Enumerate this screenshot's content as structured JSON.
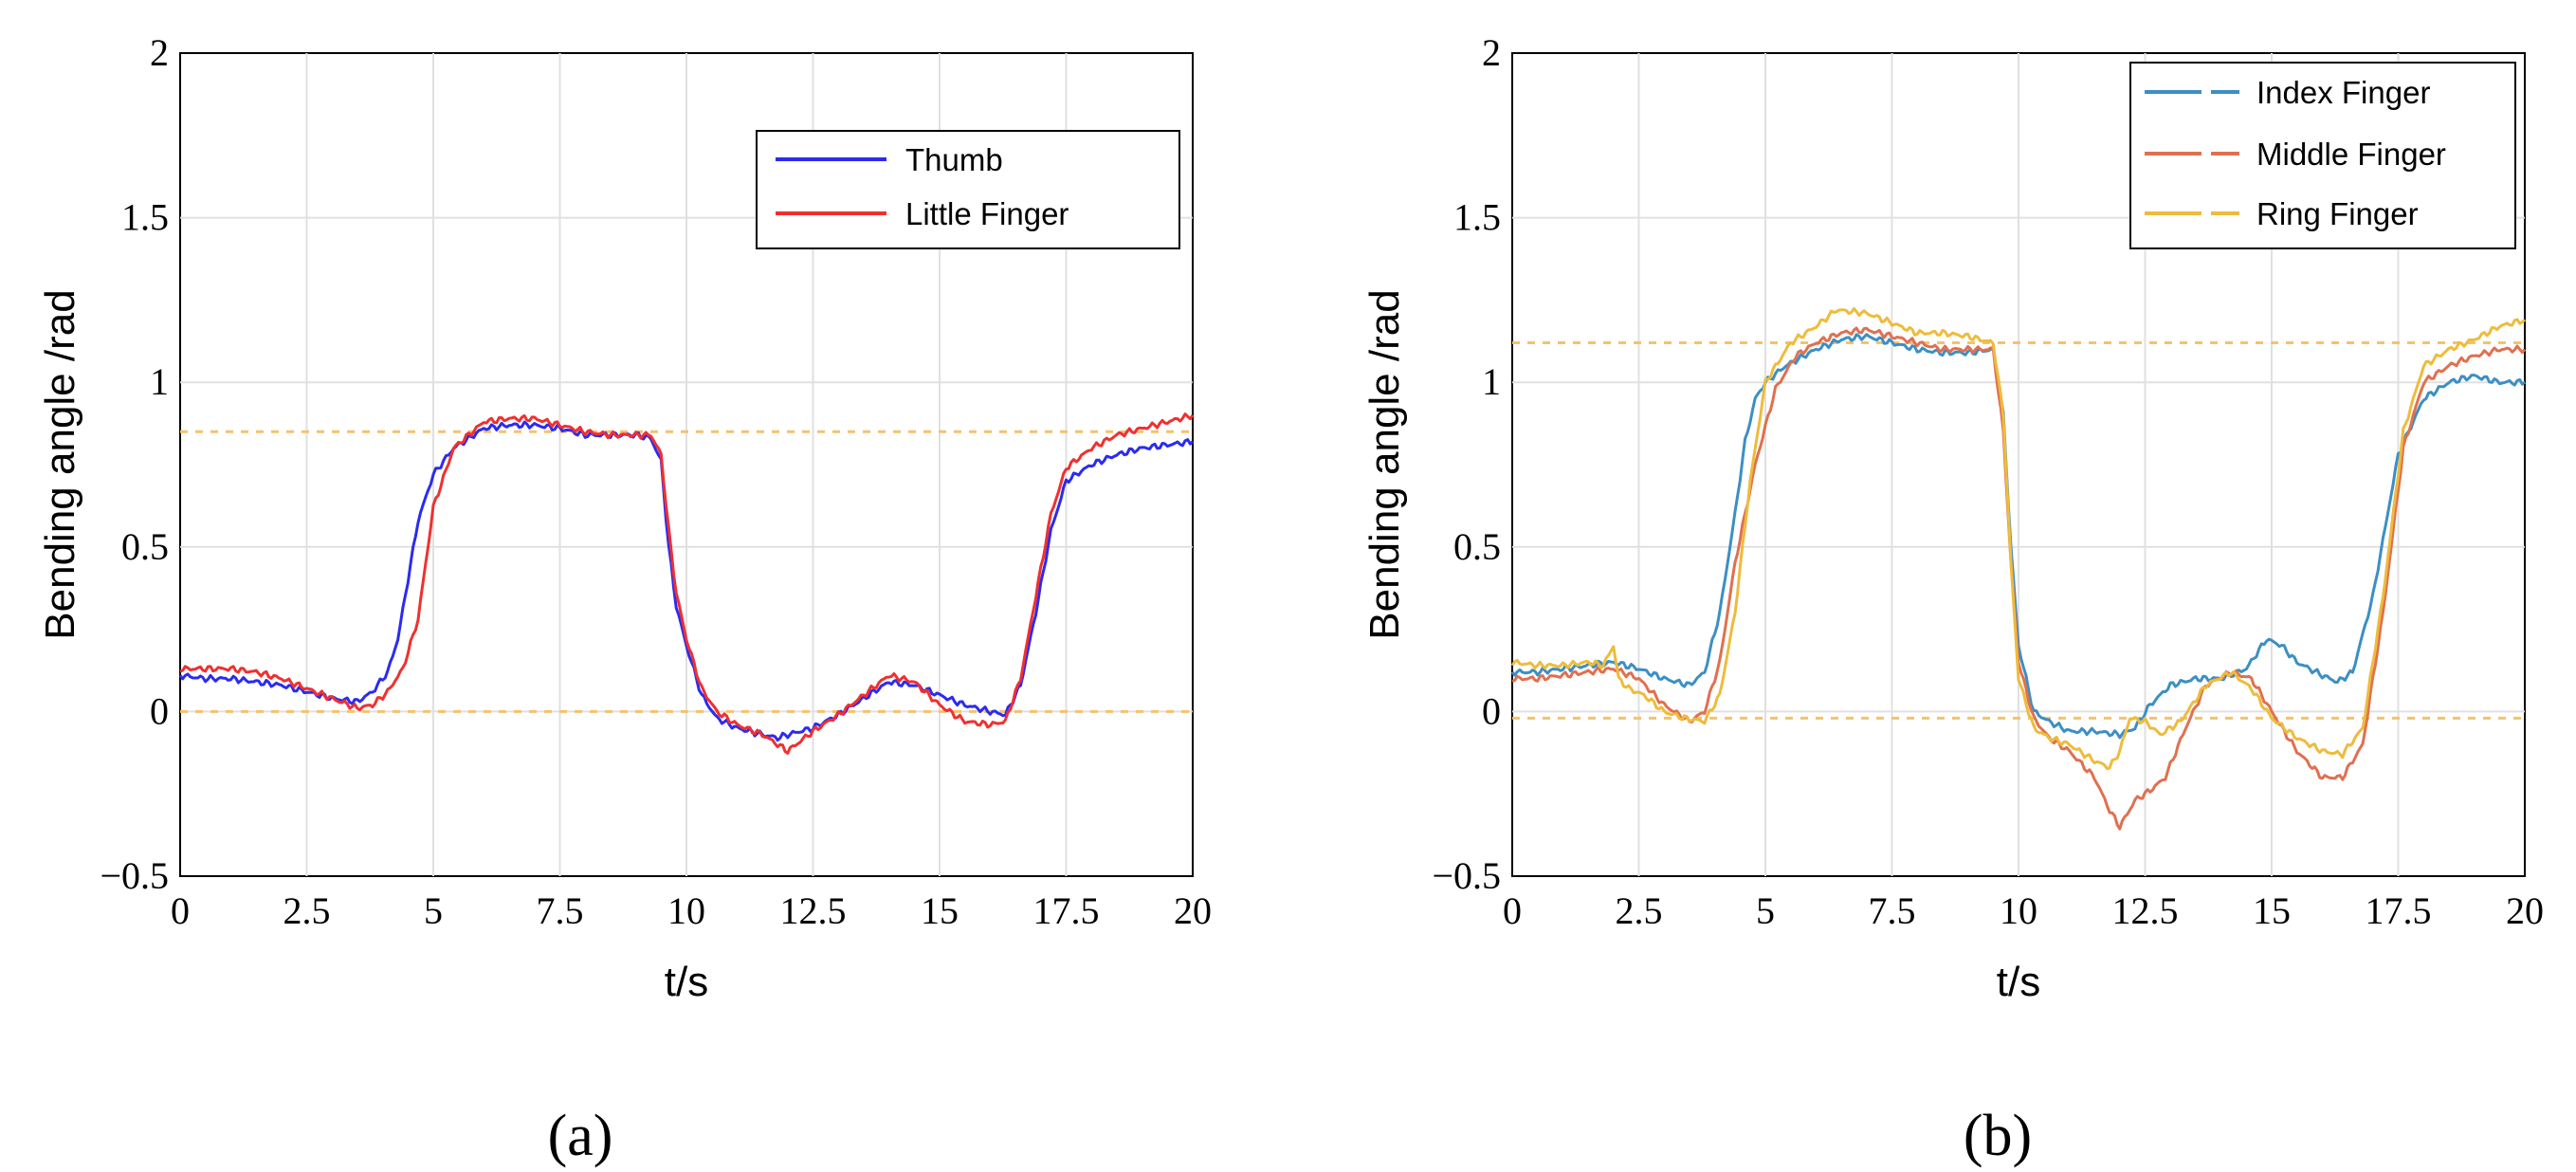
{
  "chart_data": [
    {
      "type": "line",
      "panel_label": "(a)",
      "xlabel": "t/s",
      "ylabel": "Bending angle /rad",
      "xlim": [
        0,
        20
      ],
      "ylim": [
        -0.5,
        2
      ],
      "xticks": [
        0,
        2.5,
        5,
        7.5,
        10,
        12.5,
        15,
        17.5,
        20
      ],
      "xtick_labels": [
        "0",
        "2.5",
        "5",
        "7.5",
        "10",
        "12.5",
        "15",
        "17.5",
        "20"
      ],
      "yticks": [
        -0.5,
        0,
        0.5,
        1,
        1.5,
        2
      ],
      "ytick_labels": [
        "−0.5",
        "0",
        "0.5",
        "1",
        "1.5",
        "2"
      ],
      "grid": true,
      "legend_position": "top-right",
      "reference_lines": [
        0.85,
        0
      ],
      "reference_color": "#f5c26b",
      "series": [
        {
          "name": "Thumb",
          "color": "#2b2bf0",
          "x": [
            0,
            0.5,
            1,
            1.5,
            2,
            2.5,
            3,
            3.5,
            3.8,
            4.1,
            4.3,
            4.5,
            4.7,
            5,
            5.4,
            6,
            6.5,
            7,
            7.5,
            8,
            8.5,
            9,
            9.3,
            9.5,
            9.65,
            9.8,
            10,
            10.3,
            10.6,
            11,
            11.5,
            11.8,
            12,
            12.5,
            13,
            13.5,
            14,
            14.5,
            15,
            15.5,
            16,
            16.3,
            16.6,
            16.9,
            17.2,
            17.5,
            18,
            18.5,
            19,
            19.5,
            20
          ],
          "values": [
            0.11,
            0.1,
            0.1,
            0.09,
            0.08,
            0.06,
            0.04,
            0.03,
            0.06,
            0.12,
            0.22,
            0.4,
            0.58,
            0.72,
            0.8,
            0.86,
            0.87,
            0.87,
            0.86,
            0.84,
            0.84,
            0.84,
            0.83,
            0.76,
            0.5,
            0.32,
            0.2,
            0.05,
            -0.02,
            -0.05,
            -0.07,
            -0.08,
            -0.07,
            -0.05,
            -0.01,
            0.04,
            0.09,
            0.08,
            0.05,
            0.02,
            0.0,
            -0.01,
            0.08,
            0.3,
            0.55,
            0.7,
            0.75,
            0.78,
            0.8,
            0.81,
            0.82
          ]
        },
        {
          "name": "Little Finger",
          "color": "#f03030",
          "x": [
            0,
            0.5,
            1,
            1.5,
            2,
            2.5,
            3,
            3.5,
            3.8,
            4.1,
            4.4,
            4.7,
            5,
            5.4,
            6,
            6.5,
            7,
            7.5,
            8,
            8.5,
            9,
            9.3,
            9.5,
            9.65,
            9.8,
            10,
            10.3,
            10.6,
            11,
            11.5,
            11.8,
            12,
            12.5,
            13,
            13.5,
            14,
            14.5,
            15,
            15.5,
            16,
            16.3,
            16.6,
            16.9,
            17.2,
            17.5,
            18,
            18.5,
            19,
            19.5,
            20
          ],
          "values": [
            0.13,
            0.13,
            0.13,
            0.12,
            0.1,
            0.07,
            0.04,
            0.01,
            0.02,
            0.06,
            0.13,
            0.28,
            0.62,
            0.8,
            0.88,
            0.89,
            0.89,
            0.87,
            0.85,
            0.84,
            0.84,
            0.84,
            0.78,
            0.55,
            0.36,
            0.22,
            0.07,
            0.0,
            -0.04,
            -0.07,
            -0.1,
            -0.12,
            -0.06,
            -0.01,
            0.05,
            0.11,
            0.09,
            0.02,
            -0.03,
            -0.04,
            -0.03,
            0.1,
            0.35,
            0.6,
            0.74,
            0.8,
            0.84,
            0.86,
            0.88,
            0.9
          ]
        }
      ]
    },
    {
      "type": "line",
      "panel_label": "(b)",
      "xlabel": "t/s",
      "ylabel": "Bending angle /rad",
      "xlim": [
        0,
        20
      ],
      "ylim": [
        -0.5,
        2
      ],
      "xticks": [
        0,
        2.5,
        5,
        7.5,
        10,
        12.5,
        15,
        17.5,
        20
      ],
      "xtick_labels": [
        "0",
        "2.5",
        "5",
        "7.5",
        "10",
        "12.5",
        "15",
        "17.5",
        "20"
      ],
      "yticks": [
        -0.5,
        0,
        0.5,
        1,
        1.5,
        2
      ],
      "ytick_labels": [
        "−0.5",
        "0",
        "0.5",
        "1",
        "1.5",
        "2"
      ],
      "grid": true,
      "legend_position": "top-right",
      "reference_lines": [
        1.12,
        -0.02
      ],
      "reference_color": "#f5c26b",
      "series": [
        {
          "name": "Index Finger",
          "color": "#3c8fc4",
          "x": [
            0,
            0.5,
            1,
            1.5,
            2,
            2.5,
            3,
            3.5,
            3.8,
            4.1,
            4.4,
            4.6,
            4.8,
            5,
            5.4,
            6,
            6.5,
            7,
            7.5,
            8,
            8.5,
            9,
            9.5,
            9.7,
            9.85,
            10,
            10.3,
            10.6,
            11,
            11.5,
            12,
            12.3,
            12.6,
            13,
            13.5,
            14,
            14.5,
            14.9,
            15.2,
            15.5,
            16,
            16.3,
            16.6,
            17,
            17.5,
            18,
            18.5,
            19,
            19.5,
            20
          ],
          "values": [
            0.12,
            0.12,
            0.13,
            0.14,
            0.15,
            0.13,
            0.1,
            0.08,
            0.12,
            0.3,
            0.6,
            0.82,
            0.95,
            1.0,
            1.05,
            1.1,
            1.13,
            1.14,
            1.12,
            1.1,
            1.09,
            1.09,
            1.1,
            0.9,
            0.5,
            0.2,
            0.0,
            -0.03,
            -0.06,
            -0.06,
            -0.07,
            -0.05,
            0.02,
            0.08,
            0.1,
            0.1,
            0.13,
            0.22,
            0.2,
            0.15,
            0.11,
            0.09,
            0.12,
            0.35,
            0.78,
            0.95,
            1.0,
            1.02,
            1.0,
            1.0
          ]
        },
        {
          "name": "Middle Finger",
          "color": "#e07050",
          "x": [
            0,
            0.5,
            1,
            1.5,
            2,
            2.5,
            3,
            3.5,
            3.8,
            4.1,
            4.4,
            4.8,
            5.2,
            5.6,
            6,
            6.5,
            7,
            7.5,
            8,
            8.5,
            9,
            9.5,
            9.7,
            9.85,
            10,
            10.3,
            10.6,
            11,
            11.5,
            11.8,
            12,
            12.3,
            12.6,
            12.9,
            13.3,
            13.7,
            14.2,
            14.6,
            15,
            15.5,
            16,
            16.4,
            16.8,
            17.2,
            17.6,
            18,
            18.5,
            19,
            19.5,
            20
          ],
          "values": [
            0.1,
            0.1,
            0.11,
            0.12,
            0.13,
            0.1,
            0.02,
            -0.03,
            0.0,
            0.15,
            0.45,
            0.75,
            0.98,
            1.08,
            1.12,
            1.15,
            1.16,
            1.14,
            1.12,
            1.1,
            1.1,
            1.1,
            0.85,
            0.45,
            0.15,
            -0.02,
            -0.08,
            -0.12,
            -0.2,
            -0.3,
            -0.35,
            -0.27,
            -0.24,
            -0.2,
            -0.05,
            0.08,
            0.12,
            0.1,
            0.0,
            -0.12,
            -0.2,
            -0.2,
            -0.1,
            0.3,
            0.8,
            1.0,
            1.05,
            1.08,
            1.1,
            1.1
          ]
        },
        {
          "name": "Ring Finger",
          "color": "#eebc3c",
          "x": [
            0,
            0.5,
            1,
            1.5,
            1.8,
            2,
            2.1,
            2.3,
            2.6,
            3,
            3.4,
            3.8,
            4.1,
            4.4,
            4.7,
            5,
            5.5,
            6,
            6.4,
            7,
            7.5,
            8,
            8.5,
            9,
            9.5,
            9.7,
            9.85,
            10,
            10.3,
            10.6,
            11,
            11.5,
            11.8,
            12,
            12.2,
            12.5,
            12.8,
            13.2,
            13.7,
            14.2,
            14.6,
            15,
            15.5,
            16,
            16.4,
            16.8,
            17.2,
            17.6,
            18,
            18.5,
            19,
            19.5,
            20
          ],
          "values": [
            0.15,
            0.14,
            0.14,
            0.15,
            0.14,
            0.2,
            0.1,
            0.07,
            0.05,
            0.0,
            -0.02,
            -0.03,
            0.05,
            0.3,
            0.7,
            1.0,
            1.12,
            1.17,
            1.22,
            1.21,
            1.18,
            1.15,
            1.15,
            1.14,
            1.12,
            0.9,
            0.45,
            0.1,
            -0.05,
            -0.08,
            -0.1,
            -0.15,
            -0.17,
            -0.12,
            -0.02,
            -0.03,
            -0.07,
            -0.03,
            0.08,
            0.12,
            0.07,
            -0.02,
            -0.08,
            -0.12,
            -0.13,
            -0.05,
            0.35,
            0.85,
            1.05,
            1.1,
            1.13,
            1.17,
            1.19
          ]
        }
      ]
    }
  ]
}
